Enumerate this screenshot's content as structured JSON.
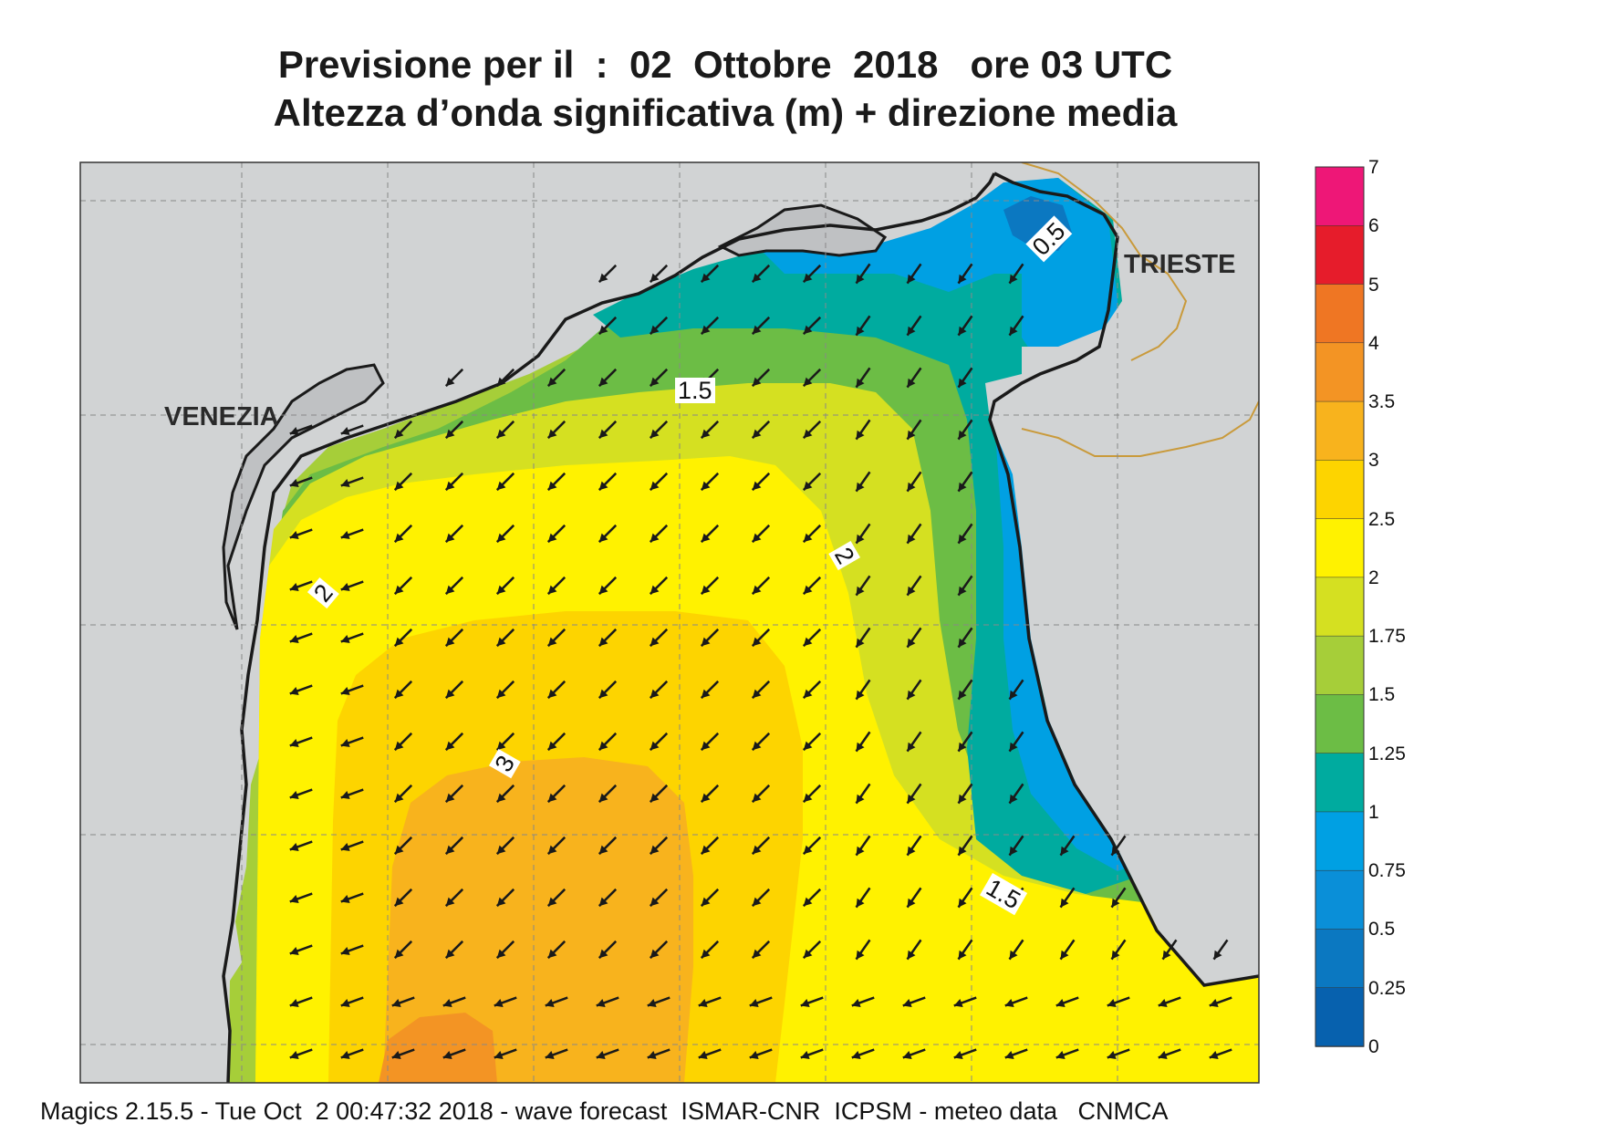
{
  "title": {
    "line1": "Previsione per il  :  02  Ottobre  2018   ore 03 UTC",
    "line2": "Altezza d’onda significativa (m) + direzione media"
  },
  "footer": {
    "text": "Magics 2.15.5 - Tue Oct  2 00:47:32 2018 - wave forecast  ISMAR-CNR  ICPSM - meteo data   CNMCA"
  },
  "map": {
    "cities": {
      "venezia": "VENEZIA",
      "trieste": "TRIESTE"
    },
    "contour_labels": [
      "0.5",
      "1.5",
      "2",
      "2",
      "3",
      "1.5"
    ],
    "land_color": "#d1d3d4",
    "coast_color": "#1a1a1a",
    "border_color": "#c99a3b",
    "arrow_color": "#1a1a1a"
  },
  "colorbar": {
    "labels": [
      "7",
      "6",
      "5",
      "4",
      "3.5",
      "3",
      "2.5",
      "2",
      "1.75",
      "1.5",
      "1.25",
      "1",
      "0.75",
      "0.5",
      "0.25",
      "0"
    ],
    "colors": [
      "#ee1777",
      "#e61c2b",
      "#ef7623",
      "#f39424",
      "#f8b31d",
      "#fdd400",
      "#fff200",
      "#d5e021",
      "#a6ce39",
      "#6cbd45",
      "#00ab9f",
      "#00a0e3",
      "#0a8fd8",
      "#0b78c1",
      "#0761ae"
    ]
  }
}
